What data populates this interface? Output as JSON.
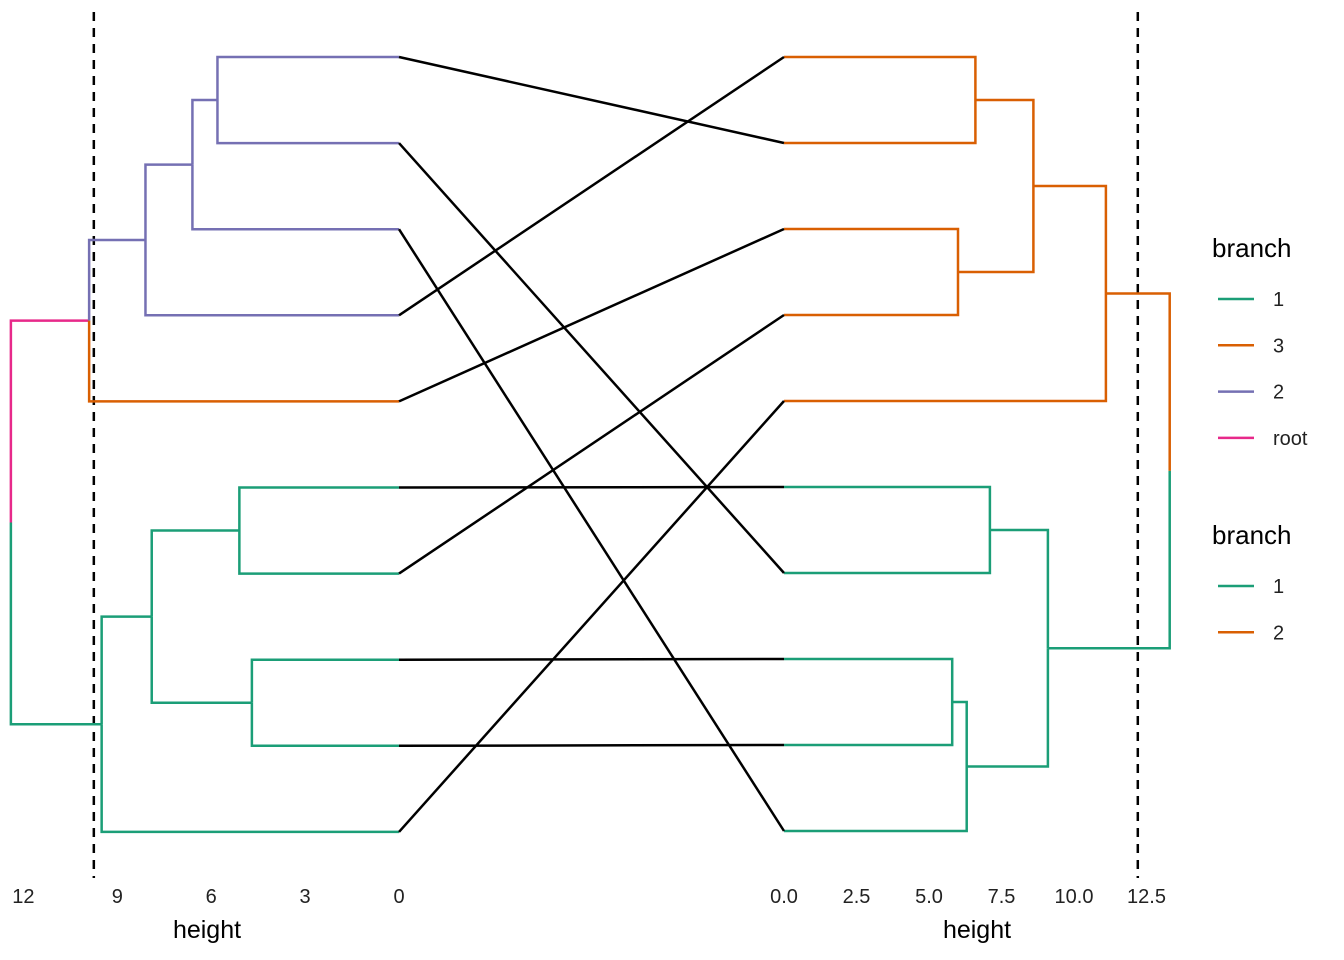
{
  "chart_data": {
    "type": "tanglegram",
    "left": {
      "xlabel": "height",
      "xticks": [
        12,
        9,
        6,
        3,
        0
      ],
      "xlim": [
        12.4,
        0
      ],
      "cut_height": 9.75,
      "leaves": 10,
      "branches": [
        {
          "id": "L_root",
          "height": 12.4,
          "children": [
            "L_top",
            "L_bot"
          ],
          "colors": [
            "root",
            "1"
          ]
        },
        {
          "id": "L_top",
          "height": 9.9,
          "children": [
            "L_p1",
            "Lf5"
          ],
          "colors": [
            "2",
            "3"
          ]
        },
        {
          "id": "L_p1",
          "height": 8.1,
          "children": [
            "L_p2",
            "Lf4"
          ],
          "colors": [
            "2",
            "2"
          ]
        },
        {
          "id": "L_p2",
          "height": 6.6,
          "children": [
            "L_p3",
            "Lf3"
          ],
          "colors": [
            "2",
            "2"
          ]
        },
        {
          "id": "L_p3",
          "height": 5.8,
          "children": [
            "Lf1",
            "Lf2"
          ],
          "colors": [
            "2",
            "2"
          ]
        },
        {
          "id": "L_bot",
          "height": 9.5,
          "children": [
            "L_g1",
            "Lf10"
          ],
          "colors": [
            "1",
            "1"
          ]
        },
        {
          "id": "L_g1",
          "height": 7.9,
          "children": [
            "L_g2",
            "L_g3"
          ],
          "colors": [
            "1",
            "1"
          ]
        },
        {
          "id": "L_g2",
          "height": 5.1,
          "children": [
            "Lf6",
            "Lf7"
          ],
          "colors": [
            "1",
            "1"
          ]
        },
        {
          "id": "L_g3",
          "height": 4.7,
          "children": [
            "Lf8",
            "Lf9"
          ],
          "colors": [
            "1",
            "1"
          ]
        }
      ]
    },
    "right": {
      "xlabel": "height",
      "xticks": [
        "0.0",
        "2.5",
        "5.0",
        "7.5",
        "10.0",
        "12.5"
      ],
      "xlim": [
        0,
        13.3
      ],
      "cut_height": 12.2,
      "leaves": 10,
      "branches": [
        {
          "id": "R_root",
          "height": 13.3,
          "children": [
            "R_top",
            "R_bot"
          ],
          "colors": [
            "2",
            "1"
          ]
        },
        {
          "id": "R_top",
          "height": 11.1,
          "children": [
            "R_o1",
            "Rf5"
          ],
          "colors": [
            "2",
            "2"
          ]
        },
        {
          "id": "R_o1",
          "height": 8.6,
          "children": [
            "R_o2",
            "R_o3"
          ],
          "colors": [
            "2",
            "2"
          ]
        },
        {
          "id": "R_o2",
          "height": 6.6,
          "children": [
            "Rf1",
            "Rf2"
          ],
          "colors": [
            "2",
            "2"
          ]
        },
        {
          "id": "R_o3",
          "height": 6.0,
          "children": [
            "Rf3",
            "Rf4"
          ],
          "colors": [
            "2",
            "2"
          ]
        },
        {
          "id": "R_bot",
          "height": 9.1,
          "children": [
            "R_g1",
            "R_g2"
          ],
          "colors": [
            "1",
            "1"
          ]
        },
        {
          "id": "R_g1",
          "height": 7.1,
          "children": [
            "Rf6",
            "Rf7"
          ],
          "colors": [
            "1",
            "1"
          ]
        },
        {
          "id": "R_g2",
          "height": 6.3,
          "children": [
            "R_g3",
            "Rf10"
          ],
          "colors": [
            "1",
            "1"
          ]
        },
        {
          "id": "R_g3",
          "height": 5.8,
          "children": [
            "Rf8",
            "Rf9"
          ],
          "colors": [
            "1",
            "1"
          ]
        }
      ]
    },
    "connections": [
      {
        "left_leaf": 1,
        "right_leaf": 2
      },
      {
        "left_leaf": 2,
        "right_leaf": 7
      },
      {
        "left_leaf": 3,
        "right_leaf": 10
      },
      {
        "left_leaf": 4,
        "right_leaf": 1
      },
      {
        "left_leaf": 5,
        "right_leaf": 3
      },
      {
        "left_leaf": 6,
        "right_leaf": 6
      },
      {
        "left_leaf": 7,
        "right_leaf": 4
      },
      {
        "left_leaf": 8,
        "right_leaf": 8
      },
      {
        "left_leaf": 9,
        "right_leaf": 9
      },
      {
        "left_leaf": 10,
        "right_leaf": 5
      }
    ],
    "legends": [
      {
        "title": "branch",
        "entries": [
          {
            "label": "1",
            "color": "#1b9e77"
          },
          {
            "label": "3",
            "color": "#d95f02"
          },
          {
            "label": "2",
            "color": "#7570b3"
          },
          {
            "label": "root",
            "color": "#e7298a"
          }
        ]
      },
      {
        "title": "branch",
        "entries": [
          {
            "label": "1",
            "color": "#1b9e77"
          },
          {
            "label": "2",
            "color": "#d95f02"
          }
        ]
      }
    ],
    "left_colors": {
      "1": "#1b9e77",
      "2": "#7570b3",
      "3": "#d95f02",
      "root": "#e7298a"
    },
    "right_colors": {
      "1": "#1b9e77",
      "2": "#d95f02"
    },
    "connection_color": "#000000",
    "cut_line_style": "dashed",
    "grid": false
  }
}
